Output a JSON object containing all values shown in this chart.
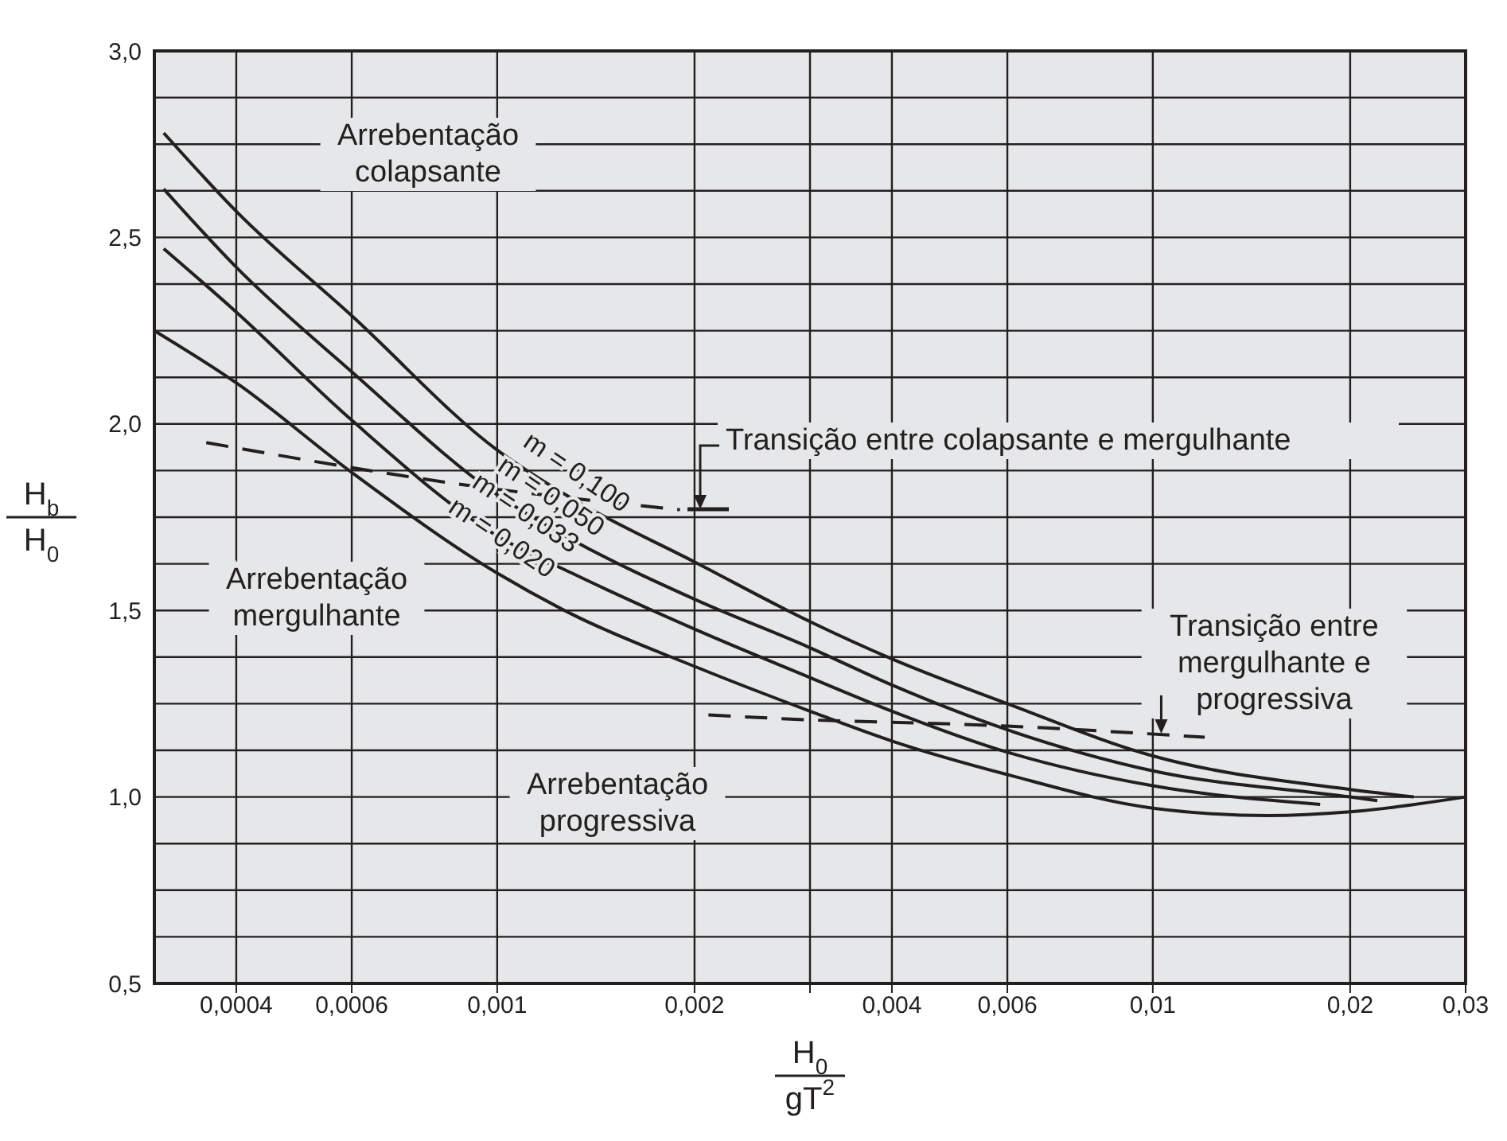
{
  "chart_data": {
    "type": "line",
    "xlabel": "H$_{0}$\ngT$^{2}$",
    "ylabel": "H$_{b}$\nH$_{0}$",
    "log": "x",
    "grid": true,
    "marker": "none",
    "line_style": "solid",
    "xlim": [
      0.0003,
      0.03
    ],
    "xticks": [
      {
        "value": 0.0004,
        "label": "0,0004"
      },
      {
        "value": 0.0006,
        "label": "0,0006"
      },
      {
        "value": 0.001,
        "label": "0,001"
      },
      {
        "value": 0.002,
        "label": "0,002"
      },
      {
        "value": 0.003,
        "label": null
      },
      {
        "value": 0.004,
        "label": "0,004"
      },
      {
        "value": 0.006,
        "label": "0,006"
      },
      {
        "value": 0.01,
        "label": "0,01"
      },
      {
        "value": 0.02,
        "label": "0,02"
      },
      {
        "value": 0.03,
        "label": "0,03"
      }
    ],
    "ylim": [
      0.5,
      3.0
    ],
    "yticks": [
      {
        "value": 0.5,
        "label": "0,5"
      },
      {
        "value": 0.625,
        "label": null
      },
      {
        "value": 0.75,
        "label": null
      },
      {
        "value": 0.875,
        "label": null
      },
      {
        "value": 1.0,
        "label": "1,0"
      },
      {
        "value": 1.125,
        "label": null
      },
      {
        "value": 1.25,
        "label": null
      },
      {
        "value": 1.375,
        "label": null
      },
      {
        "value": 1.5,
        "label": "1,5"
      },
      {
        "value": 1.625,
        "label": null
      },
      {
        "value": 1.75,
        "label": null
      },
      {
        "value": 1.875,
        "label": null
      },
      {
        "value": 2.0,
        "label": "2,0"
      },
      {
        "value": 2.125,
        "label": null
      },
      {
        "value": 2.25,
        "label": null
      },
      {
        "value": 2.375,
        "label": null
      },
      {
        "value": 2.5,
        "label": "2,5"
      },
      {
        "value": 2.625,
        "label": null
      },
      {
        "value": 2.75,
        "label": null
      },
      {
        "value": 2.875,
        "label": null
      },
      {
        "value": 3.0,
        "label": "3,0"
      }
    ],
    "series": [
      {
        "name": "m = 0,100",
        "color": "#231f20",
        "x": [
          0.00031,
          0.0004,
          0.0006,
          0.001,
          0.0013,
          0.002,
          0.003,
          0.004,
          0.006,
          0.01,
          0.02,
          0.025
        ],
        "values": [
          2.78,
          2.57,
          2.29,
          1.93,
          1.8,
          1.63,
          1.47,
          1.37,
          1.25,
          1.11,
          1.02,
          1.0
        ]
      },
      {
        "name": "m = 0,050",
        "color": "#231f20",
        "x": [
          0.00031,
          0.0004,
          0.0006,
          0.001,
          0.0013,
          0.002,
          0.003,
          0.004,
          0.006,
          0.01,
          0.02,
          0.022
        ],
        "values": [
          2.63,
          2.42,
          2.14,
          1.81,
          1.69,
          1.53,
          1.4,
          1.3,
          1.18,
          1.07,
          1.0,
          0.99
        ]
      },
      {
        "name": "m = 0,033",
        "color": "#231f20",
        "x": [
          0.00031,
          0.0004,
          0.0006,
          0.001,
          0.0013,
          0.002,
          0.003,
          0.004,
          0.006,
          0.01,
          0.018
        ],
        "values": [
          2.47,
          2.3,
          2.01,
          1.7,
          1.6,
          1.45,
          1.32,
          1.23,
          1.12,
          1.03,
          0.98
        ]
      },
      {
        "name": "m = 0,020",
        "color": "#231f20",
        "x": [
          0.0003,
          0.0004,
          0.0006,
          0.001,
          0.0013,
          0.002,
          0.003,
          0.004,
          0.006,
          0.01,
          0.015,
          0.02,
          0.03
        ],
        "values": [
          2.25,
          2.11,
          1.87,
          1.6,
          1.49,
          1.35,
          1.23,
          1.15,
          1.06,
          0.97,
          0.95,
          0.96,
          1.0
        ]
      },
      {
        "color": "#231f20",
        "line_style": "dashed",
        "x": [
          0.00036,
          0.00095,
          0.0019
        ],
        "values": [
          1.95,
          1.83,
          1.77
        ]
      },
      {
        "color": "#231f20",
        "line_style": "dashed",
        "x": [
          0.0021,
          0.0027,
          0.006,
          0.012
        ],
        "values": [
          1.22,
          1.21,
          1.19,
          1.16
        ]
      }
    ],
    "annotations": [
      "Arrebentação\ncolapsante",
      "Arrebentação\nmergulhante",
      "Arrebentação\nprogressiva",
      "Transição entre colapsante e mergulhante",
      {
        "text": "Transição entre\nmergulhante e\nprogressiva",
        "x": 0.0103,
        "y": 1.17
      }
    ]
  }
}
